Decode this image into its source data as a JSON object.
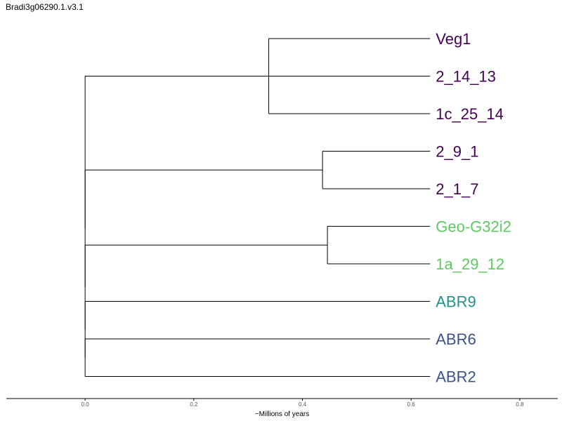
{
  "title": "Bradi3g06290.1.v3.1",
  "colors": {
    "purple": "#440154",
    "green": "#5ec962",
    "teal": "#21918c",
    "blue": "#3b528b",
    "branch": "#000000"
  },
  "chart_data": {
    "type": "dendrogram",
    "xlabel": "~Millions of years",
    "xlim": [
      -0.145,
      0.87
    ],
    "xticks": [
      "0.0",
      "0.2",
      "0.4",
      "0.6",
      "0.8"
    ],
    "leaves": [
      {
        "name": "Veg1",
        "color": "#440154"
      },
      {
        "name": "2_14_13",
        "color": "#440154"
      },
      {
        "name": "1c_25_14",
        "color": "#440154"
      },
      {
        "name": "2_9_1",
        "color": "#440154"
      },
      {
        "name": "2_1_7",
        "color": "#440154"
      },
      {
        "name": "Geo-G32i2",
        "color": "#5ec962"
      },
      {
        "name": "1a_29_12",
        "color": "#5ec962"
      },
      {
        "name": "ABR9",
        "color": "#21918c"
      },
      {
        "name": "ABR6",
        "color": "#3b528b"
      },
      {
        "name": "ABR2",
        "color": "#3b528b"
      }
    ],
    "tree": {
      "x": 0.0,
      "children": [
        {
          "x": 0.0,
          "children": [
            {
              "leaf": 1
            },
            {
              "x": 0.338,
              "children": [
                {
                  "leaf": 0
                },
                {
                  "leaf": 2
                }
              ]
            }
          ]
        },
        {
          "x": 0.0,
          "children": [
            {
              "x": 0.437,
              "children": [
                {
                  "leaf": 3
                },
                {
                  "leaf": 4
                }
              ]
            },
            {
              "x": 0.0,
              "children": [
                {
                  "x": 0.446,
                  "children": [
                    {
                      "leaf": 5
                    },
                    {
                      "leaf": 6
                    }
                  ]
                },
                {
                  "x": 0.0,
                  "children": [
                    {
                      "leaf": 7
                    },
                    {
                      "x": 0.0,
                      "children": [
                        {
                          "leaf": 8
                        },
                        {
                          "leaf": 9
                        }
                      ]
                    }
                  ]
                }
              ]
            }
          ]
        }
      ],
      "leaf_x": 0.635
    }
  }
}
